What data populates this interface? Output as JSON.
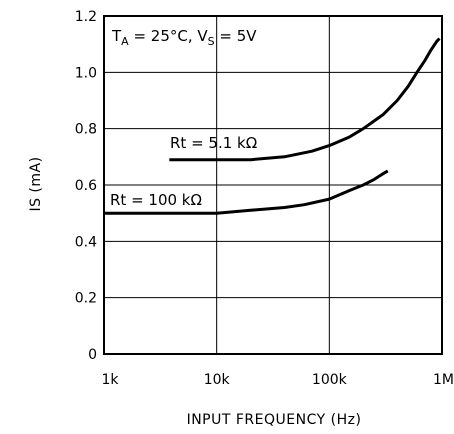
{
  "chart_data": {
    "type": "line",
    "xscale": "log",
    "xlim": [
      1000,
      1000000
    ],
    "ylim": [
      0,
      1.2
    ],
    "xlabel": "INPUT FREQUENCY (Hz)",
    "ylabel": "IS (mA)",
    "xticks": [
      {
        "value": 1000,
        "label": "1k"
      },
      {
        "value": 10000,
        "label": "10k"
      },
      {
        "value": 100000,
        "label": "100k"
      },
      {
        "value": 1000000,
        "label": "1M"
      }
    ],
    "yticks": [
      {
        "value": 0,
        "label": "0"
      },
      {
        "value": 0.2,
        "label": "0.2"
      },
      {
        "value": 0.4,
        "label": "0.4"
      },
      {
        "value": 0.6,
        "label": "0.6"
      },
      {
        "value": 0.8,
        "label": "0.8"
      },
      {
        "value": 1.0,
        "label": "1.0"
      },
      {
        "value": 1.2,
        "label": "1.2"
      }
    ],
    "grid": true,
    "condition": {
      "main": "T",
      "sub1": "A",
      "mid": " = 25°C, V",
      "sub2": "S",
      "tail": " = 5V"
    },
    "series": [
      {
        "name": "Rt = 5.1 kΩ",
        "x": [
          3800,
          10000,
          20000,
          40000,
          70000,
          100000,
          150000,
          200000,
          300000,
          400000,
          500000,
          600000,
          700000,
          800000,
          900000,
          950000
        ],
        "y": [
          0.69,
          0.69,
          0.69,
          0.7,
          0.72,
          0.74,
          0.77,
          0.8,
          0.85,
          0.9,
          0.95,
          1.0,
          1.04,
          1.08,
          1.11,
          1.12
        ]
      },
      {
        "name": "Rt = 100 kΩ",
        "x": [
          1000,
          5000,
          10000,
          20000,
          40000,
          60000,
          100000,
          150000,
          200000,
          250000,
          300000,
          330000
        ],
        "y": [
          0.5,
          0.5,
          0.5,
          0.51,
          0.52,
          0.53,
          0.55,
          0.58,
          0.6,
          0.62,
          0.64,
          0.65
        ]
      }
    ]
  }
}
